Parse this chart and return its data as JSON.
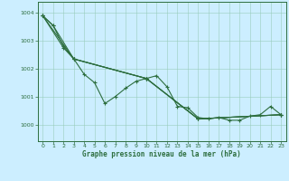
{
  "title": "Graphe pression niveau de la mer (hPa)",
  "bg_color": "#cceeff",
  "grid_color": "#99ccbb",
  "line_color": "#2d6e3e",
  "xlim": [
    -0.5,
    23.5
  ],
  "ylim": [
    999.4,
    1004.4
  ],
  "yticks": [
    1000,
    1001,
    1002,
    1003,
    1004
  ],
  "xticks": [
    0,
    1,
    2,
    3,
    4,
    5,
    6,
    7,
    8,
    9,
    10,
    11,
    12,
    13,
    14,
    15,
    16,
    17,
    18,
    19,
    20,
    21,
    22,
    23
  ],
  "curve1_x": [
    0,
    1,
    2,
    3,
    4,
    5,
    6,
    7,
    8,
    9,
    10,
    11,
    12,
    13,
    14,
    15,
    16,
    17,
    18,
    19,
    20,
    21,
    22,
    23
  ],
  "curve1_y": [
    1003.9,
    1003.55,
    1002.8,
    1002.35,
    1001.8,
    1001.5,
    1000.75,
    1001.0,
    1001.3,
    1001.55,
    1001.65,
    1001.75,
    1001.35,
    1000.65,
    1000.6,
    1000.25,
    1000.2,
    1000.25,
    1000.15,
    1000.15,
    1000.3,
    1000.35,
    1000.65,
    1000.35
  ],
  "curve2_x": [
    0,
    3,
    10,
    15,
    23
  ],
  "curve2_y": [
    1003.9,
    1002.35,
    1001.65,
    1000.2,
    1000.35
  ],
  "curve3_x": [
    0,
    2,
    3,
    10,
    15,
    23
  ],
  "curve3_y": [
    1003.9,
    1002.75,
    1002.35,
    1001.65,
    1000.2,
    1000.35
  ],
  "curve4_x": [
    0,
    1,
    3,
    10,
    15,
    23
  ],
  "curve4_y": [
    1003.9,
    1003.55,
    1002.35,
    1001.65,
    1000.2,
    1000.35
  ],
  "xlabel_fontsize": 5.5,
  "tick_fontsize": 4.5,
  "marker_size": 3,
  "line_width": 0.8
}
